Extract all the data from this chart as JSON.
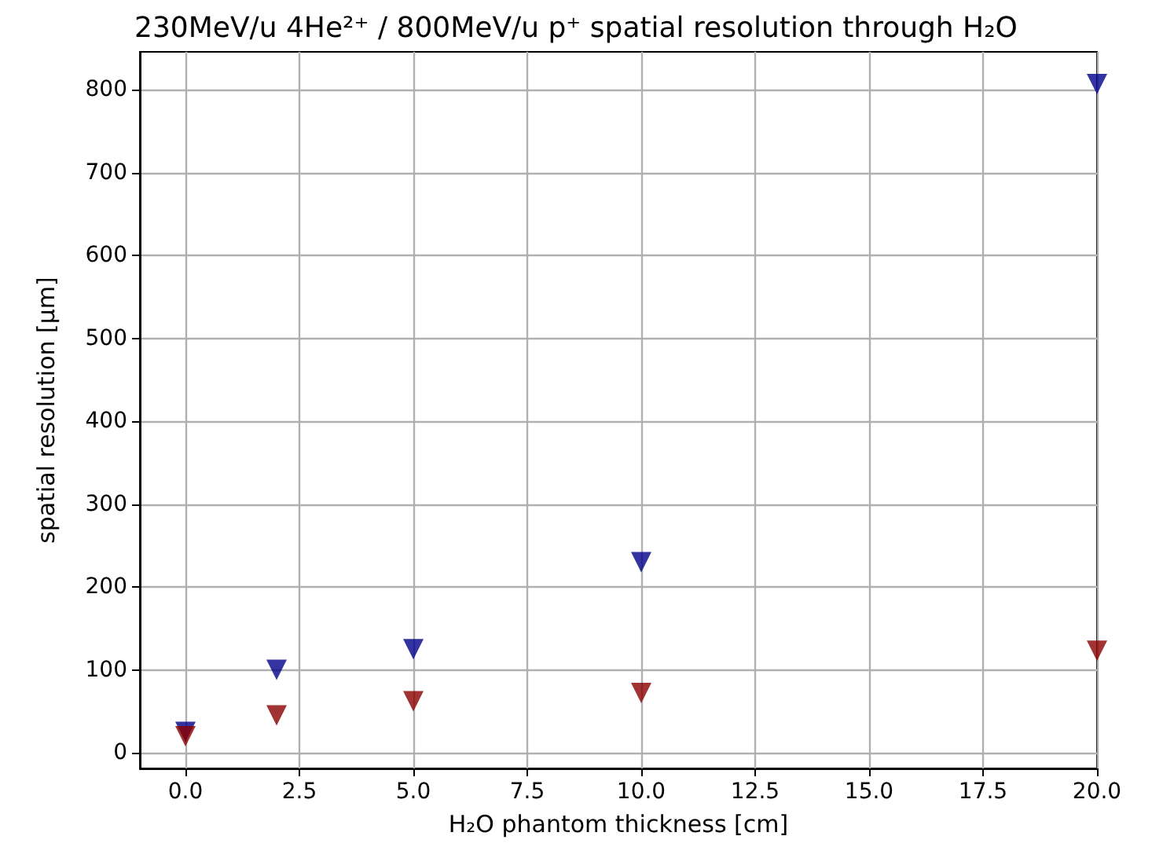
{
  "chart_data": {
    "type": "scatter",
    "title": "230MeV/u 4He²⁺ / 800MeV/u p⁺ spatial resolution through H₂O",
    "xlabel": "H₂O phantom thickness [cm]",
    "ylabel": "spatial resolution [μm]",
    "x": [
      0,
      2,
      5,
      10,
      20
    ],
    "series": [
      {
        "color": "#00008b",
        "values": [
          25,
          100,
          125,
          230,
          807
        ]
      },
      {
        "color": "#8b0000",
        "values": [
          20,
          45,
          62,
          72,
          123
        ]
      }
    ],
    "xlim": [
      -1,
      20
    ],
    "ylim": [
      -19,
      846
    ],
    "xticks": [
      {
        "value": 0,
        "label": "0.0"
      },
      {
        "value": 2.5,
        "label": "2.5"
      },
      {
        "value": 5,
        "label": "5.0"
      },
      {
        "value": 7.5,
        "label": "7.5"
      },
      {
        "value": 10,
        "label": "10.0"
      },
      {
        "value": 12.5,
        "label": "12.5"
      },
      {
        "value": 15,
        "label": "15.0"
      },
      {
        "value": 17.5,
        "label": "17.5"
      },
      {
        "value": 20,
        "label": "20.0"
      }
    ],
    "yticks": [
      0,
      100,
      200,
      300,
      400,
      500,
      600,
      700,
      800
    ],
    "grid": true,
    "marker": "triangle"
  }
}
